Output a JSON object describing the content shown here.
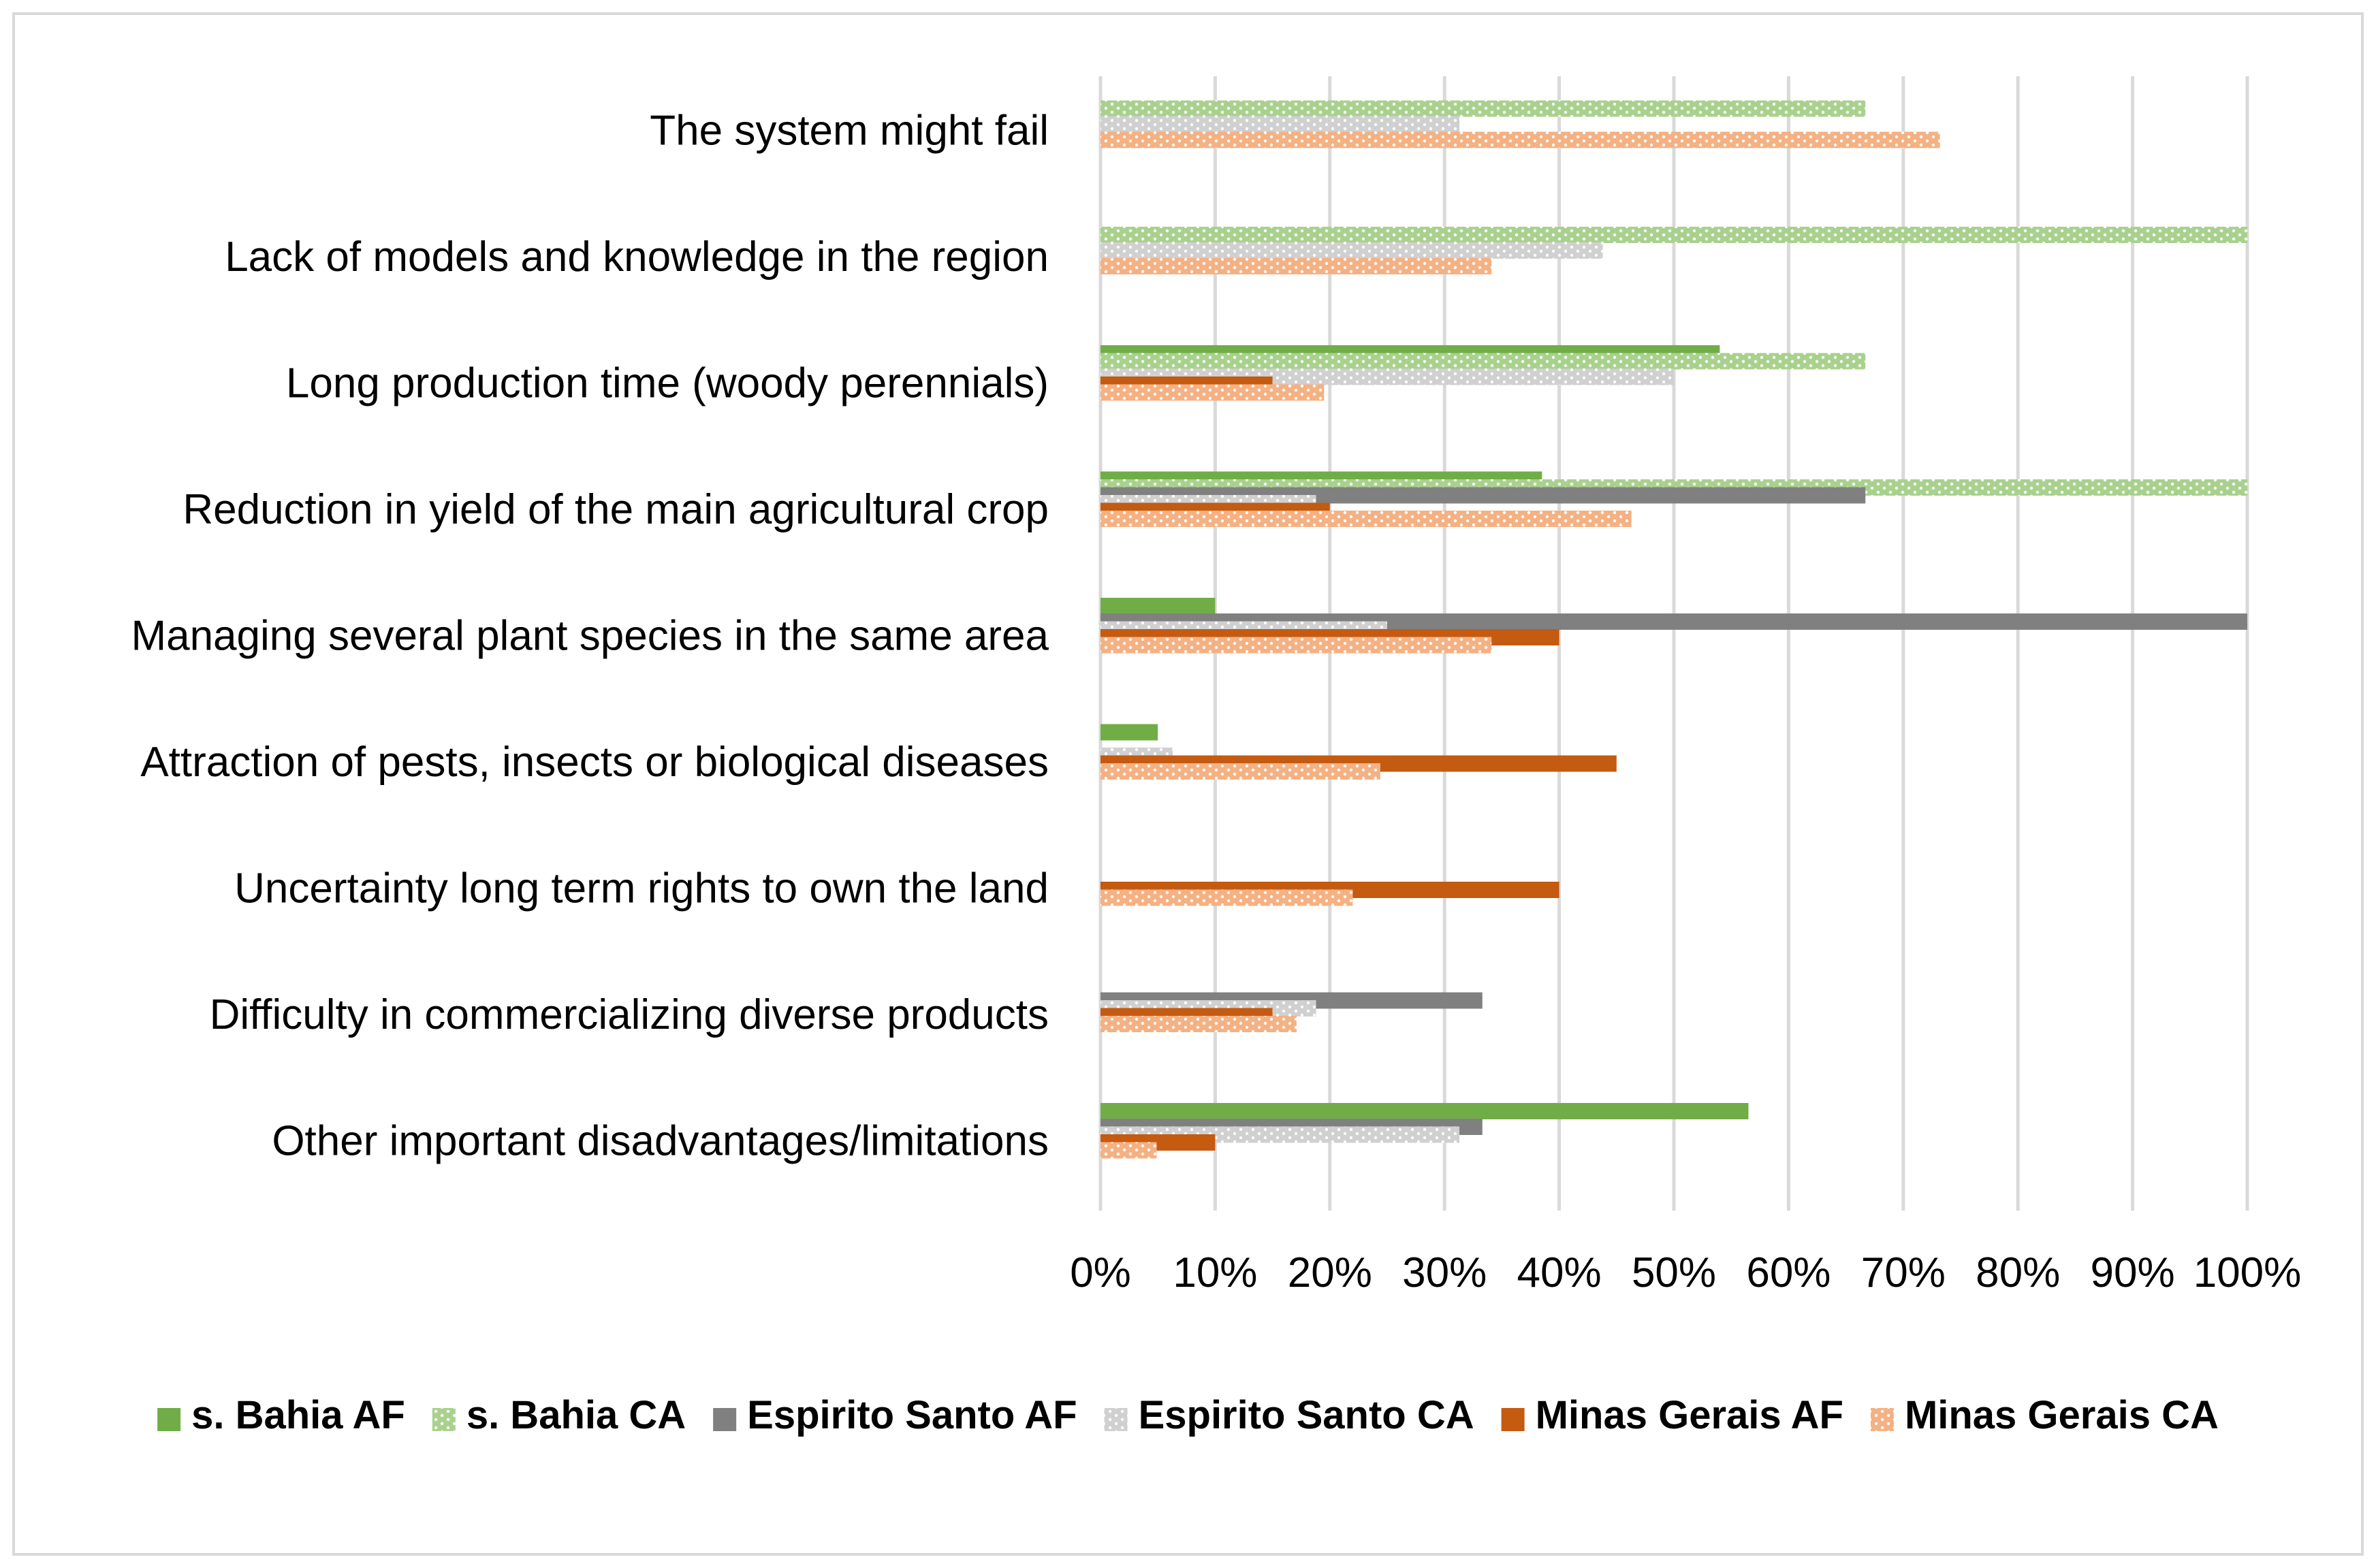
{
  "chart_data": {
    "type": "bar",
    "orientation": "horizontal",
    "title": "",
    "xlabel": "",
    "ylabel": "",
    "xlim": [
      0,
      100
    ],
    "x_ticks": [
      "0%",
      "10%",
      "20%",
      "30%",
      "40%",
      "50%",
      "60%",
      "70%",
      "80%",
      "90%",
      "100%"
    ],
    "grid": true,
    "legend_position": "bottom",
    "categories": [
      "The system might fail",
      "Lack of models and knowledge in the region",
      "Long production time (woody perennials)",
      "Reduction in yield of the main agricultural crop",
      "Managing several plant species in the same area",
      "Attraction of pests, insects or biological diseases",
      "Uncertainty long term rights to own the land",
      "Difficulty in commercializing diverse products",
      "Other important disadvantages/limitations"
    ],
    "series": [
      {
        "name": "s. Bahia AF",
        "color": "#70ad47",
        "pattern": "solid",
        "values": [
          0,
          0,
          54,
          38.5,
          10,
          5,
          0,
          0,
          56.5
        ]
      },
      {
        "name": "s. Bahia CA",
        "color": "#a9d18e",
        "pattern": "dotted",
        "values": [
          66.7,
          100,
          66.7,
          100,
          0,
          0,
          0,
          0,
          0
        ]
      },
      {
        "name": "Espirito Santo AF",
        "color": "#808080",
        "pattern": "solid",
        "values": [
          0,
          0,
          0,
          66.7,
          100,
          0,
          0,
          33.3,
          33.3
        ]
      },
      {
        "name": "Espirito Santo CA",
        "color": "#d0d0d0",
        "pattern": "dotted",
        "values": [
          31.3,
          43.8,
          50,
          18.8,
          25,
          6.3,
          0,
          18.8,
          31.3
        ]
      },
      {
        "name": "Minas Gerais AF",
        "color": "#c55a11",
        "pattern": "solid",
        "values": [
          0,
          0,
          15,
          20,
          40,
          45,
          40,
          15,
          10
        ]
      },
      {
        "name": "Minas Gerais CA",
        "color": "#f4b183",
        "pattern": "dotted",
        "values": [
          73.2,
          34.1,
          19.5,
          46.3,
          34.1,
          24.4,
          22,
          17.1,
          4.9
        ]
      }
    ]
  }
}
